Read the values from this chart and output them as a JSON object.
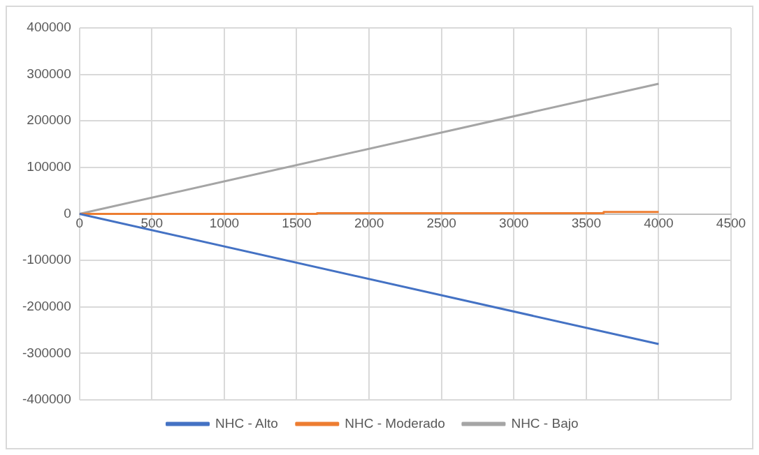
{
  "chart_data": {
    "type": "line",
    "xlim": [
      0,
      4500
    ],
    "xticks": [
      0,
      500,
      1000,
      1500,
      2000,
      2500,
      3000,
      3500,
      4000,
      4500
    ],
    "ylim": [
      -400000,
      400000
    ],
    "yticks": [
      -400000,
      -300000,
      -200000,
      -100000,
      0,
      100000,
      200000,
      300000,
      400000
    ],
    "grid": true,
    "legend": "bottom",
    "series": [
      {
        "name": "NHC - Alto",
        "color": "#4472c4",
        "x": [
          0,
          4000
        ],
        "values": [
          0,
          -280000
        ]
      },
      {
        "name": "NHC - Moderado",
        "color": "#ed7d31",
        "x": [
          0,
          1640,
          1640,
          3620,
          3620,
          4000
        ],
        "values": [
          0,
          0,
          1500,
          1500,
          4000,
          4000
        ]
      },
      {
        "name": "NHC - Bajo",
        "color": "#a5a5a5",
        "x": [
          0,
          4000
        ],
        "values": [
          0,
          280000
        ]
      }
    ]
  }
}
